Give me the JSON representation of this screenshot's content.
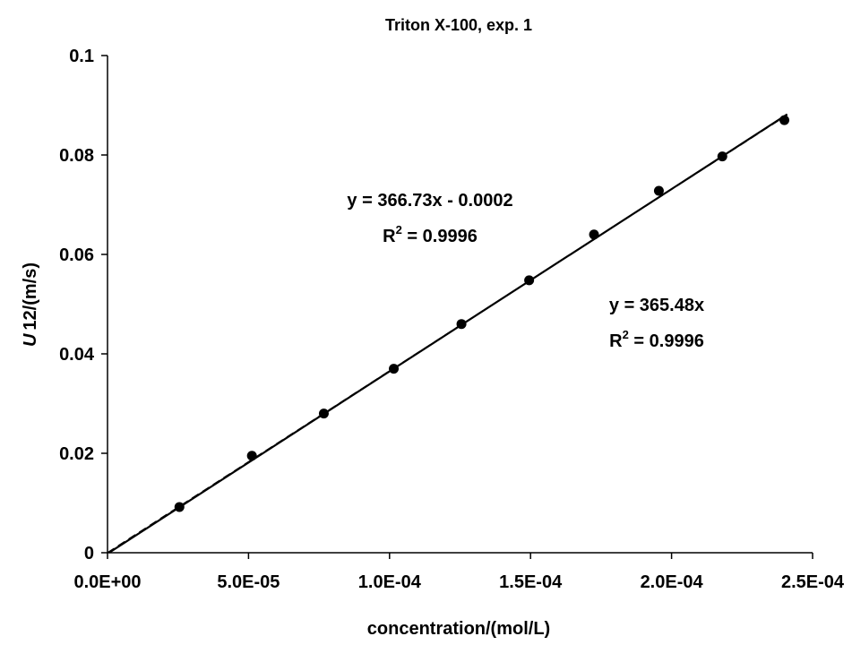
{
  "chart_data": {
    "type": "scatter",
    "title": "Triton X-100, exp. 1",
    "xlabel": "concentration/(mol/L)",
    "ylabel_italic": "U",
    "ylabel_rest": "12/(m/s)",
    "xlim": [
      0,
      0.00025
    ],
    "ylim": [
      0,
      0.1
    ],
    "xticks": [
      0,
      5e-05,
      0.0001,
      0.00015,
      0.0002,
      0.00025
    ],
    "xtick_labels": [
      "0.0E+00",
      "5.0E-05",
      "1.0E-04",
      "1.5E-04",
      "2.0E-04",
      "2.5E-04"
    ],
    "yticks": [
      0,
      0.02,
      0.04,
      0.06,
      0.08,
      0.1
    ],
    "ytick_labels": [
      "0",
      "0.02",
      "0.04",
      "0.06",
      "0.08",
      "0.1"
    ],
    "grid": false,
    "series": [
      {
        "marker": "circle",
        "color": "#000000",
        "points": [
          {
            "x": 2.55e-05,
            "y": 0.0092
          },
          {
            "x": 5.12e-05,
            "y": 0.0195
          },
          {
            "x": 7.67e-05,
            "y": 0.028
          },
          {
            "x": 0.0001015,
            "y": 0.037
          },
          {
            "x": 0.0001255,
            "y": 0.046
          },
          {
            "x": 0.0001495,
            "y": 0.0548
          },
          {
            "x": 0.0001725,
            "y": 0.064
          },
          {
            "x": 0.0001955,
            "y": 0.0728
          },
          {
            "x": 0.000218,
            "y": 0.0797
          },
          {
            "x": 0.00024,
            "y": 0.087
          }
        ]
      }
    ],
    "trendlines": [
      {
        "slope": 366.73,
        "intercept": -0.0002,
        "style": "solid",
        "equation": "y = 366.73x - 0.0002",
        "r2_prefix": "R",
        "r2_sup": "2",
        "r2_value": " = 0.9996"
      },
      {
        "slope": 365.48,
        "intercept": 0,
        "style": "dashed",
        "equation": "y = 365.48x",
        "r2_prefix": "R",
        "r2_sup": "2",
        "r2_value": " = 0.9996"
      }
    ]
  }
}
